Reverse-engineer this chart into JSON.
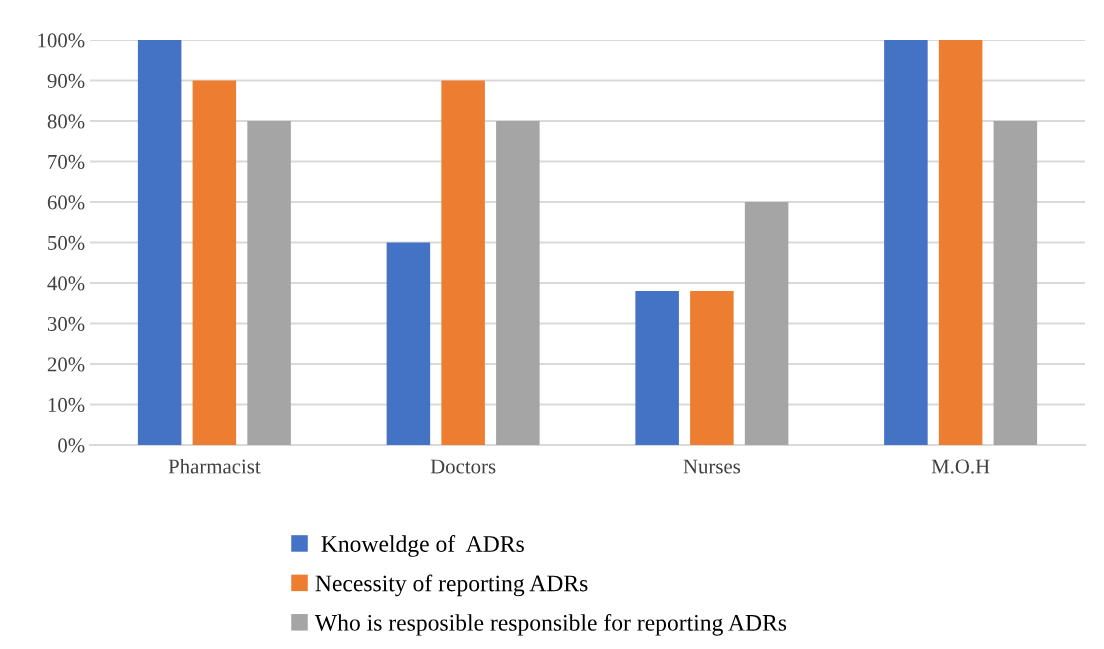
{
  "chart_data": {
    "type": "bar",
    "categories": [
      "Pharmacist",
      "Doctors",
      "Nurses",
      "M.O.H"
    ],
    "series": [
      {
        "name": " Knoweldge of  ADRs",
        "color": "#4472c4",
        "values": [
          100,
          50,
          38,
          100
        ]
      },
      {
        "name": "Necessity of reporting ADRs",
        "color": "#ed7d31",
        "values": [
          90,
          90,
          38,
          100
        ]
      },
      {
        "name": "Who is resposible responsible for reporting ADRs",
        "color": "#a5a5a5",
        "values": [
          80,
          80,
          60,
          80
        ]
      }
    ],
    "ylim": [
      0,
      100
    ],
    "yticks": [
      {
        "value": 0,
        "label": "0%"
      },
      {
        "value": 10,
        "label": "10%"
      },
      {
        "value": 20,
        "label": "20%"
      },
      {
        "value": 30,
        "label": "30%"
      },
      {
        "value": 40,
        "label": "40%"
      },
      {
        "value": 50,
        "label": "50%"
      },
      {
        "value": 60,
        "label": "60%"
      },
      {
        "value": 70,
        "label": "70%"
      },
      {
        "value": 80,
        "label": "80%"
      },
      {
        "value": 90,
        "label": "90%"
      },
      {
        "value": 100,
        "label": "100%"
      }
    ],
    "grid": "y",
    "legend": "bottom"
  }
}
